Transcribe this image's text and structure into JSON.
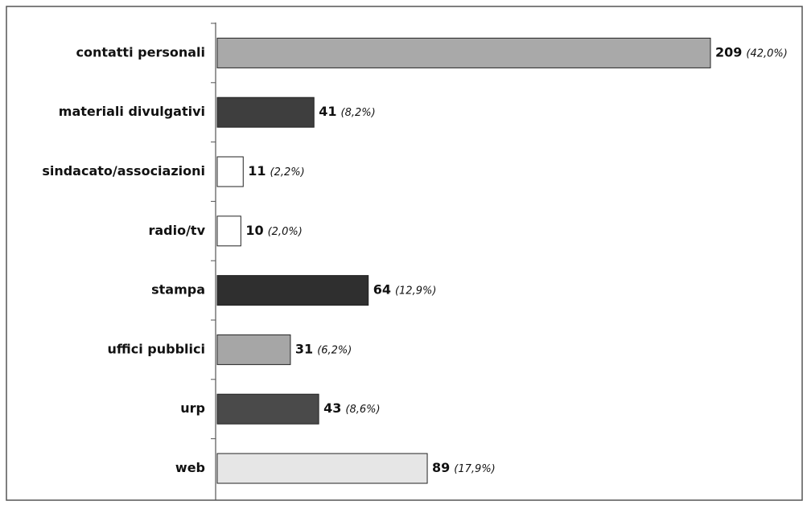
{
  "chart_data": {
    "type": "bar",
    "orientation": "horizontal",
    "categories": [
      "contatti personali",
      "materiali divulgativi",
      "sindacato/associazioni",
      "radio/tv",
      "stampa",
      "uffici pubblici",
      "urp",
      "web"
    ],
    "values": [
      209,
      41,
      11,
      10,
      64,
      31,
      43,
      89
    ],
    "share_labels": [
      "(42,0%)",
      "(8,2%)",
      "(2,2%)",
      "(2,0%)",
      "(12,9%)",
      "(6,2%)",
      "(8,6%)",
      "(17,9%)"
    ],
    "colors": [
      "#a9a9a9",
      "#3e3e3e",
      "#ffffff",
      "#ffffff",
      "#2f2f2f",
      "#a6a6a6",
      "#4a4a4a",
      "#e6e6e6"
    ]
  }
}
